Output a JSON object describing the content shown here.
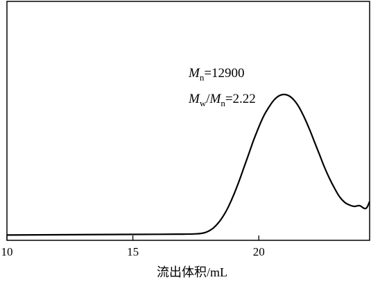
{
  "chart_data": {
    "type": "line",
    "xlabel": "流出体积/mL",
    "ylabel": "",
    "xlim": [
      10,
      24.4
    ],
    "ylim": [
      0,
      1
    ],
    "grid": false,
    "x_ticks": [
      10,
      15,
      20
    ],
    "x_tick_labels": [
      "10",
      "15",
      "20"
    ],
    "annotations": {
      "mn_symbol": "M",
      "mn_sub": "n",
      "mn_value": "=12900",
      "mw_symbol": "M",
      "mw_sub": "w",
      "slash": "/",
      "mn2_symbol": "M",
      "mn2_sub": "n",
      "pdi_value": "=2.22"
    },
    "series": [
      {
        "color": "#000000",
        "points": [
          [
            10.0,
            0.008
          ],
          [
            12.0,
            0.01
          ],
          [
            14.0,
            0.012
          ],
          [
            16.0,
            0.013
          ],
          [
            17.0,
            0.014
          ],
          [
            17.5,
            0.016
          ],
          [
            17.8,
            0.022
          ],
          [
            18.0,
            0.035
          ],
          [
            18.2,
            0.058
          ],
          [
            18.4,
            0.095
          ],
          [
            18.6,
            0.145
          ],
          [
            18.8,
            0.21
          ],
          [
            19.0,
            0.29
          ],
          [
            19.2,
            0.38
          ],
          [
            19.4,
            0.48
          ],
          [
            19.6,
            0.58
          ],
          [
            19.8,
            0.68
          ],
          [
            20.0,
            0.77
          ],
          [
            20.2,
            0.85
          ],
          [
            20.4,
            0.91
          ],
          [
            20.6,
            0.96
          ],
          [
            20.8,
            0.99
          ],
          [
            21.0,
            1.0
          ],
          [
            21.2,
            0.99
          ],
          [
            21.4,
            0.96
          ],
          [
            21.6,
            0.91
          ],
          [
            21.8,
            0.84
          ],
          [
            22.0,
            0.76
          ],
          [
            22.2,
            0.67
          ],
          [
            22.4,
            0.58
          ],
          [
            22.6,
            0.49
          ],
          [
            22.8,
            0.41
          ],
          [
            23.0,
            0.34
          ],
          [
            23.2,
            0.28
          ],
          [
            23.4,
            0.24
          ],
          [
            23.6,
            0.22
          ],
          [
            23.8,
            0.21
          ],
          [
            24.0,
            0.215
          ],
          [
            24.2,
            0.195
          ],
          [
            24.3,
            0.205
          ],
          [
            24.4,
            0.245
          ]
        ]
      }
    ]
  }
}
